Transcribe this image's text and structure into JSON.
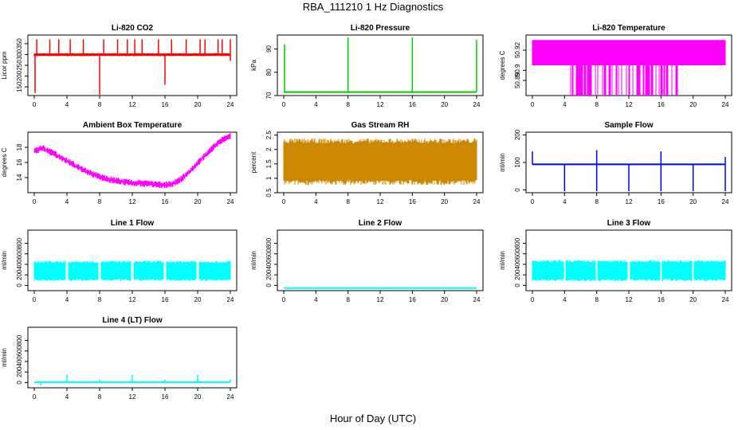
{
  "figure": {
    "title": "RBA_111210  1 Hz Diagnostics",
    "xlabel": "Hour of Day (UTC)"
  },
  "chart_data": [
    {
      "type": "line",
      "title": "Li-820 CO2",
      "ylabel": "Licor ppm",
      "color": "#ff0000",
      "xlim": [
        0,
        24
      ],
      "ylim": [
        110,
        390
      ],
      "yticks": [
        150,
        200,
        250,
        300,
        350
      ],
      "baseline": 300,
      "band": [
        293,
        305
      ],
      "spikes_up": [
        0.3,
        1.9,
        3.0,
        4.4,
        6.0,
        8.5,
        10.2,
        11.4,
        12.3,
        13.2,
        15.2,
        16.8,
        18.6,
        20.3,
        20.9,
        22.5,
        23.0,
        24.0
      ],
      "spike_up_value": 370,
      "spikes_down": [
        [
          0.1,
          122
        ],
        [
          8.0,
          110
        ],
        [
          16.0,
          160
        ],
        [
          24.0,
          270
        ]
      ]
    },
    {
      "type": "line",
      "title": "Li-820 Pressure",
      "ylabel": "kPa",
      "color": "#00cc00",
      "xlim": [
        0,
        24
      ],
      "ylim": [
        70,
        96
      ],
      "yticks": [
        70,
        80,
        90
      ],
      "baseline": 71.5,
      "spikes_up": [
        [
          0.1,
          92
        ],
        [
          8.0,
          95
        ],
        [
          16.0,
          95
        ],
        [
          24.0,
          94
        ]
      ]
    },
    {
      "type": "line",
      "title": "Li-820 Temperature",
      "ylabel": "degrees C",
      "color": "#ff00ff",
      "xlim": [
        0,
        24
      ],
      "ylim": [
        50.875,
        50.935
      ],
      "yticks": [
        50.89,
        50.9,
        50.92
      ],
      "levels": [
        50.875,
        50.905,
        50.93
      ]
    },
    {
      "type": "line",
      "title": "Ambient Box Temperature",
      "ylabel": "degrees C",
      "color": "#ff00ff",
      "xlim": [
        0,
        24
      ],
      "ylim": [
        12.0,
        20.0
      ],
      "yticks": [
        14,
        16,
        18
      ],
      "x": [
        0,
        1,
        2,
        3,
        4,
        5,
        6,
        7,
        8,
        9,
        10,
        11,
        12,
        13,
        14,
        15,
        16,
        17,
        18,
        19,
        20,
        21,
        22,
        23,
        24
      ],
      "y": [
        17.5,
        17.9,
        17.4,
        16.8,
        16.2,
        15.6,
        15.0,
        14.5,
        14.1,
        13.8,
        13.6,
        13.4,
        13.3,
        13.25,
        13.2,
        13.1,
        13.0,
        13.2,
        13.8,
        14.8,
        15.9,
        17.0,
        18.1,
        19.0,
        19.5
      ],
      "noise": 0.45
    },
    {
      "type": "line",
      "title": "Gas Stream RH",
      "ylabel": "percent",
      "color": "#cc8800",
      "xlim": [
        0,
        24
      ],
      "ylim": [
        0.5,
        2.6
      ],
      "yticks": [
        0.5,
        1.0,
        1.5,
        2.0,
        2.5
      ],
      "band": [
        0.85,
        2.3
      ]
    },
    {
      "type": "line",
      "title": "Sample Flow",
      "ylabel": "ml/min",
      "color": "#0000ff",
      "xlim": [
        0,
        24
      ],
      "ylim": [
        -10,
        210
      ],
      "yticks": [
        0,
        100,
        200
      ],
      "baseline": 93,
      "spikes_down": [
        [
          4.0,
          -5
        ],
        [
          8.0,
          -5
        ],
        [
          12.0,
          -5
        ],
        [
          16.0,
          -5
        ],
        [
          20.0,
          -5
        ],
        [
          24.0,
          -5
        ]
      ],
      "spikes_up": [
        [
          0.0,
          140
        ],
        [
          8.0,
          145
        ],
        [
          16.0,
          140
        ],
        [
          24.0,
          120
        ]
      ]
    },
    {
      "type": "line",
      "title": "Line 1 Flow",
      "ylabel": "ml/min",
      "color": "#00ffff",
      "xlim": [
        0,
        24
      ],
      "ylim": [
        -100,
        1050
      ],
      "yticks": [
        0,
        200,
        400,
        600,
        800
      ],
      "band": [
        100,
        450
      ],
      "gaps": [
        4,
        8,
        12,
        16,
        20
      ]
    },
    {
      "type": "line",
      "title": "Line 2 Flow",
      "ylabel": "ml/min",
      "color": "#00ffff",
      "xlim": [
        0,
        24
      ],
      "ylim": [
        -100,
        1050
      ],
      "yticks": [
        0,
        200,
        400,
        600,
        800
      ],
      "baseline": -50
    },
    {
      "type": "line",
      "title": "Line 3 Flow",
      "ylabel": "ml/min",
      "color": "#00ffff",
      "xlim": [
        0,
        24
      ],
      "ylim": [
        -100,
        1050
      ],
      "yticks": [
        0,
        200,
        400,
        600,
        800
      ],
      "band": [
        100,
        460
      ],
      "gaps": [
        4,
        8,
        12,
        16,
        20
      ]
    },
    {
      "type": "line",
      "title": "Line 4 (LT) Flow",
      "ylabel": "ml/min",
      "color": "#00ffff",
      "xlim": [
        0,
        24
      ],
      "ylim": [
        -100,
        1050
      ],
      "yticks": [
        0,
        200,
        400,
        600,
        800
      ],
      "baseline": 5,
      "spikes_up": [
        [
          4.0,
          150
        ],
        [
          8.0,
          60
        ],
        [
          12.0,
          150
        ],
        [
          16.0,
          60
        ],
        [
          20.0,
          150
        ],
        [
          24.0,
          60
        ]
      ],
      "spikes_down": [
        [
          0.8,
          -60
        ]
      ]
    }
  ],
  "xticks": [
    0,
    4,
    8,
    12,
    16,
    20,
    24
  ]
}
